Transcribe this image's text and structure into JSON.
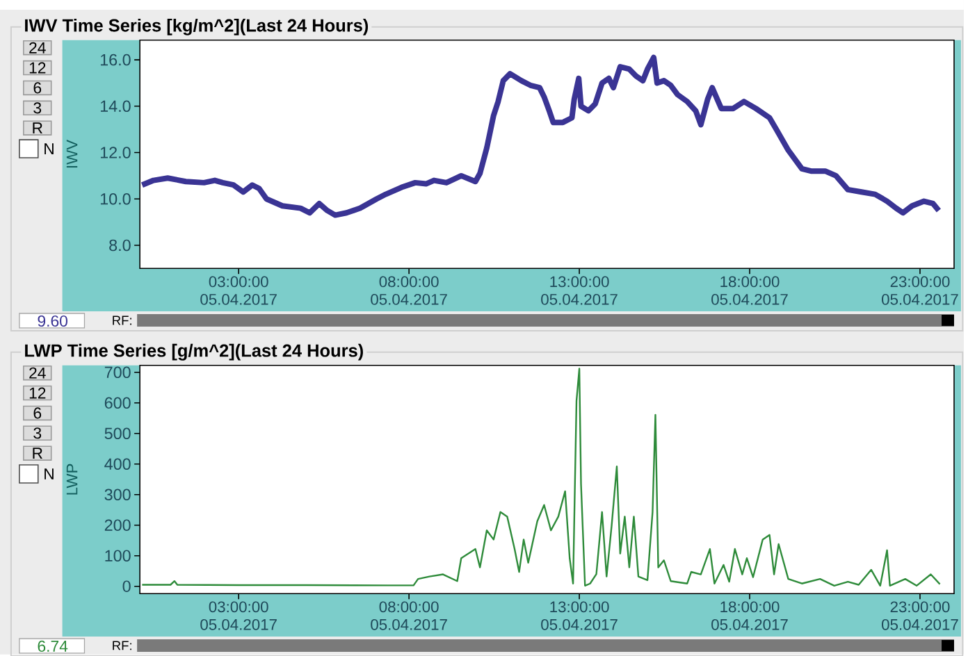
{
  "chart_data": [
    {
      "type": "line",
      "title": "IWV Time Series [kg/m^2](Last 24 Hours)",
      "ylabel": "IWV",
      "series": [
        {
          "color": "#3a3494",
          "x": [
            "2017-04-05T00:10",
            "2017-04-05T00:30",
            "2017-04-05T00:55",
            "2017-04-05T01:27",
            "2017-04-05T01:59",
            "2017-04-05T02:18",
            "2017-04-05T02:32",
            "2017-04-05T02:51",
            "2017-04-05T03:08",
            "2017-04-05T03:24",
            "2017-04-05T03:36",
            "2017-04-05T03:49",
            "2017-04-05T04:17",
            "2017-04-05T04:49",
            "2017-04-05T05:05",
            "2017-04-05T05:22",
            "2017-04-05T05:36",
            "2017-04-05T05:50",
            "2017-04-05T06:10",
            "2017-04-05T06:34",
            "2017-04-05T07:03",
            "2017-04-05T07:19",
            "2017-04-05T07:47",
            "2017-04-05T08:11",
            "2017-04-05T08:30",
            "2017-04-05T08:44",
            "2017-04-05T09:06",
            "2017-04-05T09:32",
            "2017-04-05T09:57",
            "2017-04-05T10:05",
            "2017-04-05T10:17",
            "2017-04-05T10:29",
            "2017-04-05T10:37",
            "2017-04-05T10:46",
            "2017-04-05T10:58",
            "2017-04-05T11:18",
            "2017-04-05T11:34",
            "2017-04-05T11:50",
            "2017-04-05T11:58",
            "2017-04-05T12:07",
            "2017-04-05T12:14",
            "2017-04-05T12:31",
            "2017-04-05T12:47",
            "2017-04-05T12:51",
            "2017-04-05T12:59",
            "2017-04-05T13:03",
            "2017-04-05T13:16",
            "2017-04-05T13:28",
            "2017-04-05T13:40",
            "2017-04-05T13:52",
            "2017-04-05T14:00",
            "2017-04-05T14:12",
            "2017-04-05T14:28",
            "2017-04-05T14:40",
            "2017-04-05T14:52",
            "2017-04-05T15:00",
            "2017-04-05T15:11",
            "2017-04-05T15:17",
            "2017-04-05T15:29",
            "2017-04-05T15:41",
            "2017-04-05T15:53",
            "2017-04-05T16:10",
            "2017-04-05T16:25",
            "2017-04-05T16:34",
            "2017-04-05T16:46",
            "2017-04-05T16:54",
            "2017-04-05T17:10",
            "2017-04-05T17:31",
            "2017-04-05T17:50",
            "2017-04-05T18:11",
            "2017-04-05T18:35",
            "2017-04-05T18:47",
            "2017-04-05T19:08",
            "2017-04-05T19:32",
            "2017-04-05T19:48",
            "2017-04-05T20:13",
            "2017-04-05T20:32",
            "2017-04-05T20:53",
            "2017-04-05T21:17",
            "2017-04-05T21:41",
            "2017-04-05T22:02",
            "2017-04-05T22:18",
            "2017-04-05T22:30",
            "2017-04-05T22:46",
            "2017-04-05T23:07",
            "2017-04-05T23:23",
            "2017-04-05T23:33"
          ],
          "values": [
            10.6,
            10.8,
            10.9,
            10.75,
            10.7,
            10.8,
            10.7,
            10.6,
            10.3,
            10.6,
            10.45,
            10.0,
            9.7,
            9.6,
            9.4,
            9.8,
            9.5,
            9.3,
            9.4,
            9.6,
            10.0,
            10.2,
            10.5,
            10.7,
            10.65,
            10.8,
            10.7,
            11.0,
            10.75,
            11.1,
            12.2,
            13.6,
            14.2,
            15.1,
            15.4,
            15.1,
            14.9,
            14.8,
            14.4,
            13.8,
            13.3,
            13.3,
            13.5,
            14.3,
            15.2,
            14.0,
            13.8,
            14.1,
            15.0,
            15.2,
            14.8,
            15.7,
            15.6,
            15.3,
            15.1,
            15.6,
            16.1,
            15.0,
            15.1,
            14.9,
            14.5,
            14.2,
            13.8,
            13.2,
            14.3,
            14.8,
            13.9,
            13.9,
            14.2,
            13.9,
            13.5,
            13.0,
            12.1,
            11.3,
            11.2,
            11.2,
            11.0,
            10.4,
            10.3,
            10.2,
            9.9,
            9.6,
            9.4,
            9.7,
            9.9,
            9.8,
            9.5
          ]
        }
      ],
      "xlim": [
        "2017-04-05T00:06",
        "2017-04-06T00:00"
      ],
      "xticks": [
        {
          "value": "2017-04-05T03:00",
          "label": "03:00:00 05.04.2017"
        },
        {
          "value": "2017-04-05T08:00",
          "label": "08:00:00 05.04.2017"
        },
        {
          "value": "2017-04-05T13:00",
          "label": "13:00:00 05.04.2017"
        },
        {
          "value": "2017-04-05T18:00",
          "label": "18:00:00 05.04.2017"
        },
        {
          "value": "2017-04-05T23:00",
          "label": "23:00:00 05.04.2017"
        }
      ],
      "ylim": [
        7.0,
        16.85
      ],
      "yticks": [
        {
          "value": 8,
          "label": "8.0"
        },
        {
          "value": 10,
          "label": "10.0"
        },
        {
          "value": 12,
          "label": "12.0"
        },
        {
          "value": 14,
          "label": "14.0"
        },
        {
          "value": 16,
          "label": "16.0"
        }
      ],
      "marker": "none",
      "line_style": "solid",
      "annotations": [
        "24",
        "12",
        "6",
        "3",
        "R",
        "N",
        "9.60",
        "RF:"
      ]
    },
    {
      "type": "line",
      "title": "LWP Time Series [g/m^2](Last 24 Hours)",
      "ylabel": "LWP",
      "series": [
        {
          "color": "#2e8b3a",
          "x": [
            "2017-04-05T00:10",
            "2017-04-05T01:00",
            "2017-04-05T01:07",
            "2017-04-05T01:12",
            "2017-04-05T03:00",
            "2017-04-05T05:00",
            "2017-04-05T07:23",
            "2017-04-05T08:08",
            "2017-04-05T08:16",
            "2017-04-05T08:36",
            "2017-04-05T09:00",
            "2017-04-05T09:25",
            "2017-04-05T09:32",
            "2017-04-05T09:57",
            "2017-04-05T10:05",
            "2017-04-05T10:17",
            "2017-04-05T10:29",
            "2017-04-05T10:41",
            "2017-04-05T10:53",
            "2017-04-05T11:06",
            "2017-04-05T11:14",
            "2017-04-05T11:22",
            "2017-04-05T11:30",
            "2017-04-05T11:46",
            "2017-04-05T11:58",
            "2017-04-05T12:10",
            "2017-04-05T12:23",
            "2017-04-05T12:35",
            "2017-04-05T12:43",
            "2017-04-05T12:49",
            "2017-04-05T12:55",
            "2017-04-05T13:00",
            "2017-04-05T13:03",
            "2017-04-05T13:10",
            "2017-04-05T13:19",
            "2017-04-05T13:30",
            "2017-04-05T13:40",
            "2017-04-05T13:48",
            "2017-04-05T13:57",
            "2017-04-05T14:06",
            "2017-04-05T14:12",
            "2017-04-05T14:20",
            "2017-04-05T14:28",
            "2017-04-05T14:36",
            "2017-04-05T14:44",
            "2017-04-05T15:00",
            "2017-04-05T15:09",
            "2017-04-05T15:14",
            "2017-04-05T15:19",
            "2017-04-05T15:29",
            "2017-04-05T15:41",
            "2017-04-05T16:10",
            "2017-04-05T16:17",
            "2017-04-05T16:34",
            "2017-04-05T16:50",
            "2017-04-05T16:58",
            "2017-04-05T17:14",
            "2017-04-05T17:24",
            "2017-04-05T17:34",
            "2017-04-05T17:47",
            "2017-04-05T17:55",
            "2017-04-05T18:06",
            "2017-04-05T18:23",
            "2017-04-05T18:35",
            "2017-04-05T18:43",
            "2017-04-05T18:51",
            "2017-04-05T19:08",
            "2017-04-05T19:32",
            "2017-04-05T20:04",
            "2017-04-05T20:29",
            "2017-04-05T20:53",
            "2017-04-05T21:12",
            "2017-04-05T21:34",
            "2017-04-05T21:50",
            "2017-04-05T22:02",
            "2017-04-05T22:07",
            "2017-04-05T22:34",
            "2017-04-05T22:54",
            "2017-04-05T23:19",
            "2017-04-05T23:35"
          ],
          "values": [
            5,
            5,
            17,
            5,
            4,
            4,
            3,
            3,
            24,
            32,
            39,
            17,
            92,
            122,
            62,
            183,
            153,
            243,
            228,
            122,
            47,
            153,
            77,
            213,
            266,
            183,
            228,
            311,
            92,
            9,
            606,
            712,
            334,
            2,
            9,
            40,
            243,
            32,
            200,
            392,
            107,
            228,
            62,
            228,
            32,
            20,
            243,
            561,
            62,
            85,
            17,
            9,
            47,
            39,
            122,
            9,
            70,
            15,
            122,
            39,
            92,
            30,
            153,
            168,
            39,
            138,
            24,
            9,
            24,
            2,
            15,
            5,
            54,
            2,
            118,
            2,
            24,
            2,
            39,
            7
          ]
        }
      ],
      "xlim": [
        "2017-04-05T00:06",
        "2017-04-06T00:00"
      ],
      "xticks": [
        {
          "value": "2017-04-05T03:00",
          "label": "03:00:00 05.04.2017"
        },
        {
          "value": "2017-04-05T08:00",
          "label": "08:00:00 05.04.2017"
        },
        {
          "value": "2017-04-05T13:00",
          "label": "13:00:00 05.04.2017"
        },
        {
          "value": "2017-04-05T18:00",
          "label": "18:00:00 05.04.2017"
        },
        {
          "value": "2017-04-05T23:00",
          "label": "23:00:00 05.04.2017"
        }
      ],
      "ylim": [
        -24,
        723
      ],
      "yticks": [
        0,
        100,
        200,
        300,
        400,
        500,
        600,
        700
      ],
      "marker": "none",
      "line_style": "solid",
      "annotations": [
        "24",
        "12",
        "6",
        "3",
        "R",
        "N",
        "6.74",
        "RF:"
      ]
    }
  ]
}
